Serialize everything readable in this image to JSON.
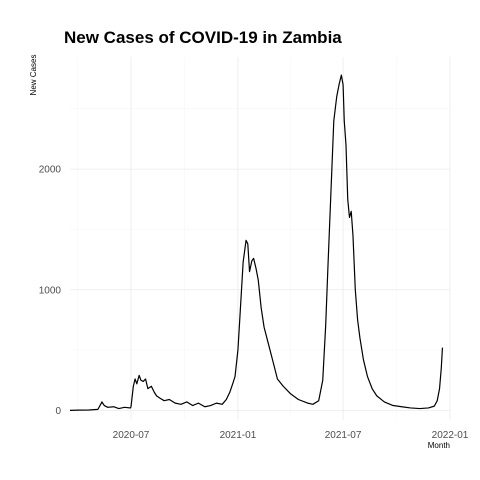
{
  "chart_data": {
    "type": "line",
    "title": "New Cases of COVID-19 in Zambia",
    "xlabel": "Month",
    "ylabel": "New Cases",
    "grid": true,
    "legend": "none",
    "xlim": [
      "2020-03-18",
      "2022-01-01"
    ],
    "ylim": [
      -80,
      2930
    ],
    "x_ticks": [
      {
        "date": "2020-07-01",
        "label": "2020-07"
      },
      {
        "date": "2021-01-01",
        "label": "2021-01"
      },
      {
        "date": "2021-07-01",
        "label": "2021-07"
      },
      {
        "date": "2022-01-01",
        "label": "2022-01"
      }
    ],
    "y_ticks": [
      {
        "value": 0,
        "label": "0"
      },
      {
        "value": 1000,
        "label": "1000"
      },
      {
        "value": 2000,
        "label": "2000"
      }
    ],
    "series": [
      {
        "x": [
          "2020-03-18",
          "2020-04-01",
          "2020-04-20",
          "2020-05-05",
          "2020-05-12",
          "2020-05-16",
          "2020-05-22",
          "2020-06-01",
          "2020-06-10",
          "2020-06-20",
          "2020-06-30",
          "2020-07-01",
          "2020-07-05",
          "2020-07-08",
          "2020-07-11",
          "2020-07-15",
          "2020-07-18",
          "2020-07-22",
          "2020-07-26",
          "2020-07-30",
          "2020-08-05",
          "2020-08-10",
          "2020-08-14",
          "2020-08-20",
          "2020-08-27",
          "2020-09-05",
          "2020-09-15",
          "2020-09-25",
          "2020-10-05",
          "2020-10-15",
          "2020-10-25",
          "2020-11-05",
          "2020-11-15",
          "2020-11-25",
          "2020-12-05",
          "2020-12-12",
          "2020-12-18",
          "2020-12-23",
          "2020-12-27",
          "2021-01-01",
          "2021-01-05",
          "2021-01-10",
          "2021-01-15",
          "2021-01-18",
          "2021-01-21",
          "2021-01-25",
          "2021-01-28",
          "2021-02-01",
          "2021-02-05",
          "2021-02-10",
          "2021-02-15",
          "2021-02-22",
          "2021-03-01",
          "2021-03-10",
          "2021-03-20",
          "2021-04-01",
          "2021-04-15",
          "2021-05-01",
          "2021-05-10",
          "2021-05-20",
          "2021-05-27",
          "2021-06-01",
          "2021-06-05",
          "2021-06-10",
          "2021-06-15",
          "2021-06-20",
          "2021-06-24",
          "2021-06-28",
          "2021-07-01",
          "2021-07-03",
          "2021-07-06",
          "2021-07-09",
          "2021-07-12",
          "2021-07-15",
          "2021-07-18",
          "2021-07-22",
          "2021-07-26",
          "2021-07-30",
          "2021-08-05",
          "2021-08-12",
          "2021-08-20",
          "2021-08-28",
          "2021-09-10",
          "2021-09-25",
          "2021-10-10",
          "2021-10-25",
          "2021-11-10",
          "2021-11-25",
          "2021-12-05",
          "2021-12-10",
          "2021-12-14",
          "2021-12-17",
          "2021-12-19"
        ],
        "y": [
          0,
          2,
          3,
          8,
          70,
          40,
          25,
          30,
          15,
          25,
          20,
          30,
          200,
          260,
          220,
          290,
          250,
          240,
          260,
          180,
          200,
          150,
          120,
          100,
          80,
          90,
          60,
          50,
          70,
          40,
          60,
          30,
          40,
          60,
          50,
          90,
          150,
          220,
          280,
          500,
          820,
          1230,
          1410,
          1380,
          1150,
          1240,
          1260,
          1180,
          1080,
          850,
          690,
          560,
          430,
          260,
          200,
          140,
          90,
          60,
          50,
          80,
          250,
          700,
          1200,
          1800,
          2400,
          2600,
          2700,
          2780,
          2700,
          2400,
          2200,
          1750,
          1600,
          1650,
          1450,
          1000,
          750,
          600,
          420,
          280,
          180,
          120,
          70,
          40,
          30,
          20,
          15,
          20,
          35,
          80,
          180,
          350,
          520
        ]
      }
    ]
  }
}
